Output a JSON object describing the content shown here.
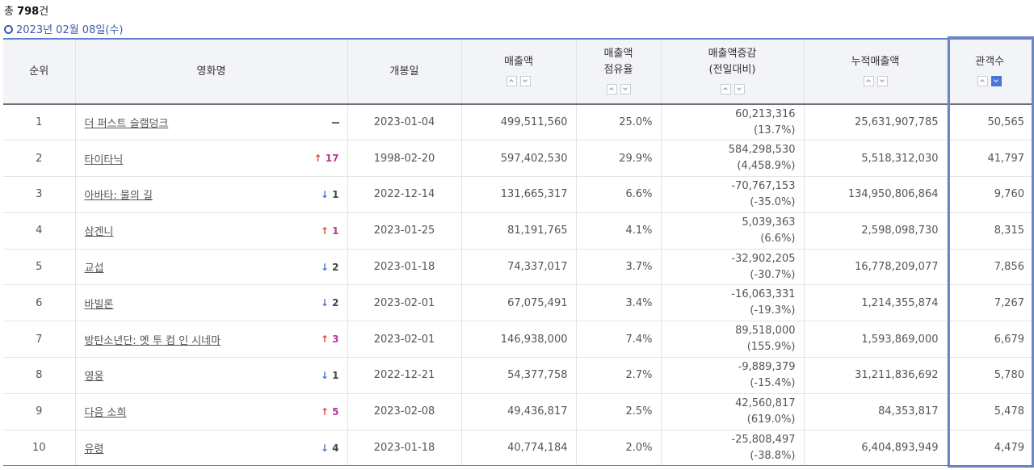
{
  "summary": {
    "total_prefix": "총 ",
    "total_count": "798",
    "total_suffix": "건"
  },
  "date_label": "2023년 02월 08일(수)",
  "columns": {
    "rank": "순위",
    "title": "영화명",
    "release": "개봉일",
    "sales": "매출액",
    "share_line1": "매출액",
    "share_line2": "점유율",
    "change_line1": "매출액증감",
    "change_line2": "(전일대비)",
    "cumulative": "누적매출액",
    "audience": "관객수"
  },
  "rows": [
    {
      "rank": "1",
      "title": "더 퍼스트 슬램덩크",
      "rank_change": {
        "dir": "same",
        "value": ""
      },
      "release": "2023-01-04",
      "sales": "499,511,560",
      "share": "25.0%",
      "diff": "60,213,316",
      "diff_pct": "(13.7%)",
      "cumulative": "25,631,907,785",
      "audience": "50,565"
    },
    {
      "rank": "2",
      "title": "타이타닉",
      "rank_change": {
        "dir": "up",
        "value": "17"
      },
      "release": "1998-02-20",
      "sales": "597,402,530",
      "share": "29.9%",
      "diff": "584,298,530",
      "diff_pct": "(4,458.9%)",
      "cumulative": "5,518,312,030",
      "audience": "41,797"
    },
    {
      "rank": "3",
      "title": "아바타: 물의 길",
      "rank_change": {
        "dir": "down",
        "value": "1"
      },
      "release": "2022-12-14",
      "sales": "131,665,317",
      "share": "6.6%",
      "diff": "-70,767,153",
      "diff_pct": "(-35.0%)",
      "cumulative": "134,950,806,864",
      "audience": "9,760"
    },
    {
      "rank": "4",
      "title": "삼겐니",
      "rank_change": {
        "dir": "up",
        "value": "1"
      },
      "release": "2023-01-25",
      "sales": "81,191,765",
      "share": "4.1%",
      "diff": "5,039,363",
      "diff_pct": "(6.6%)",
      "cumulative": "2,598,098,730",
      "audience": "8,315"
    },
    {
      "rank": "5",
      "title": "교섭",
      "rank_change": {
        "dir": "down",
        "value": "2"
      },
      "release": "2023-01-18",
      "sales": "74,337,017",
      "share": "3.7%",
      "diff": "-32,902,205",
      "diff_pct": "(-30.7%)",
      "cumulative": "16,778,209,077",
      "audience": "7,856"
    },
    {
      "rank": "6",
      "title": "바빌론",
      "rank_change": {
        "dir": "down",
        "value": "2"
      },
      "release": "2023-02-01",
      "sales": "67,075,491",
      "share": "3.4%",
      "diff": "-16,063,331",
      "diff_pct": "(-19.3%)",
      "cumulative": "1,214,355,874",
      "audience": "7,267"
    },
    {
      "rank": "7",
      "title": "방탄소년단: 옛 투 컴 인 시네마",
      "rank_change": {
        "dir": "up",
        "value": "3"
      },
      "release": "2023-02-01",
      "sales": "146,938,000",
      "share": "7.4%",
      "diff": "89,518,000",
      "diff_pct": "(155.9%)",
      "cumulative": "1,593,869,000",
      "audience": "6,679"
    },
    {
      "rank": "8",
      "title": "영웅",
      "rank_change": {
        "dir": "down",
        "value": "1"
      },
      "release": "2022-12-21",
      "sales": "54,377,758",
      "share": "2.7%",
      "diff": "-9,889,379",
      "diff_pct": "(-15.4%)",
      "cumulative": "31,211,836,692",
      "audience": "5,780"
    },
    {
      "rank": "9",
      "title": "다음 소희",
      "rank_change": {
        "dir": "up",
        "value": "5"
      },
      "release": "2023-02-08",
      "sales": "49,436,817",
      "share": "2.5%",
      "diff": "42,560,817",
      "diff_pct": "(619.0%)",
      "cumulative": "84,353,817",
      "audience": "5,478"
    },
    {
      "rank": "10",
      "title": "유령",
      "rank_change": {
        "dir": "down",
        "value": "4"
      },
      "release": "2023-01-18",
      "sales": "40,774,184",
      "share": "2.0%",
      "diff": "-25,808,497",
      "diff_pct": "(-38.8%)",
      "cumulative": "6,404,893,949",
      "audience": "4,479"
    }
  ],
  "icons": {
    "up_arrow": "arrow-up-icon",
    "down_arrow": "arrow-down-icon",
    "no_change": "dash-icon",
    "sort_asc": "chevron-up-icon",
    "sort_desc": "chevron-down-icon"
  },
  "sort_state": {
    "active_column": "audience",
    "direction": "desc"
  },
  "colors": {
    "accent": "#4a74d6",
    "rank_up_arrow": "#e2483b",
    "rank_up_text": "#b83a8e",
    "rank_down_arrow": "#4a78d0",
    "highlight_border": "#6b86c2"
  }
}
